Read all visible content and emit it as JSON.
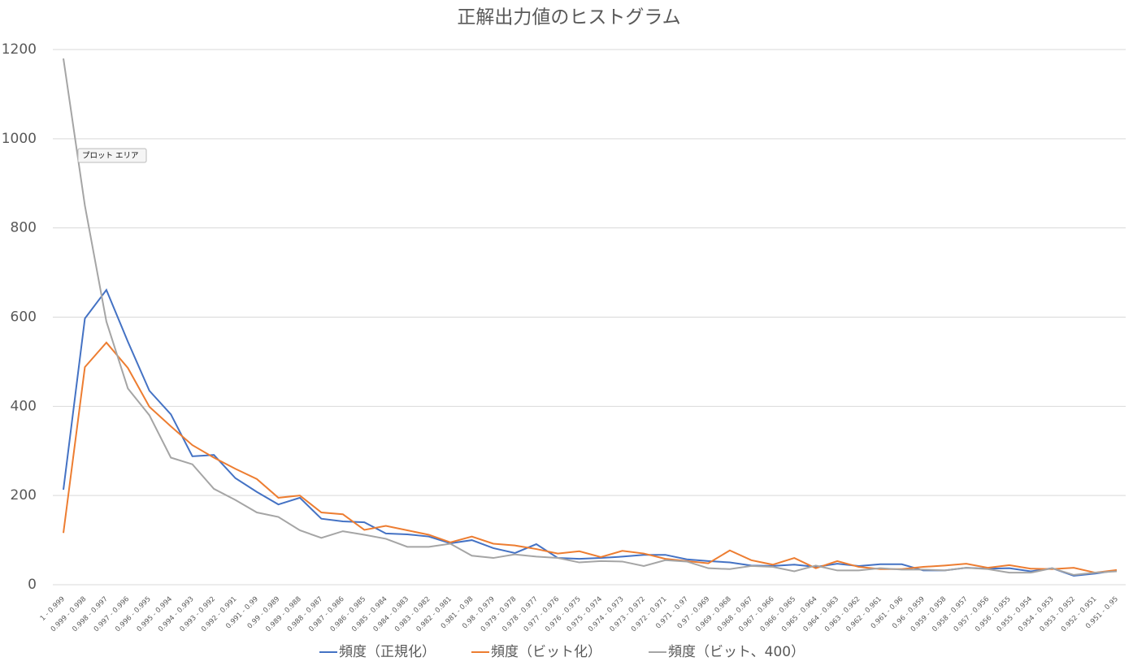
{
  "chart_data": {
    "type": "line",
    "title": "正解出力値のヒストグラム",
    "categories": [
      "1 - 0.999",
      "0.999 - 0.998",
      "0.998 - 0.997",
      "0.997 - 0.996",
      "0.996 - 0.995",
      "0.995 - 0.994",
      "0.994 - 0.993",
      "0.993 - 0.992",
      "0.992 - 0.991",
      "0.991 - 0.99",
      "0.99 - 0.989",
      "0.989 - 0.988",
      "0.988 - 0.987",
      "0.987 - 0.986",
      "0.986 - 0.985",
      "0.985 - 0.984",
      "0.984 - 0.983",
      "0.983 - 0.982",
      "0.982 - 0.981",
      "0.981 - 0.98",
      "0.98 - 0.979",
      "0.979 - 0.978",
      "0.978 - 0.977",
      "0.977 - 0.976",
      "0.976 - 0.975",
      "0.975 - 0.974",
      "0.974 - 0.973",
      "0.973 - 0.972",
      "0.972 - 0.971",
      "0.971 - 0.97",
      "0.97 - 0.969",
      "0.969 - 0.968",
      "0.968 - 0.967",
      "0.967 - 0.966",
      "0.966 - 0.965",
      "0.965 - 0.964",
      "0.964 - 0.963",
      "0.963 - 0.962",
      "0.962 - 0.961",
      "0.961 - 0.96",
      "0.96 - 0.959",
      "0.959 - 0.958",
      "0.958 - 0.957",
      "0.957 - 0.956",
      "0.956 - 0.955",
      "0.955 - 0.954",
      "0.954 - 0.953",
      "0.953 - 0.952",
      "0.952 - 0.951",
      "0.951 - 0.95"
    ],
    "series": [
      {
        "name": "頻度（正規化）",
        "color": "#4472c4",
        "values": [
          213,
          597,
          661,
          545,
          435,
          382,
          288,
          291,
          239,
          208,
          180,
          195,
          148,
          142,
          140,
          115,
          113,
          108,
          93,
          100,
          82,
          71,
          91,
          60,
          58,
          60,
          63,
          67,
          67,
          57,
          53,
          50,
          43,
          42,
          45,
          40,
          47,
          42,
          46,
          46,
          32,
          32,
          38,
          36,
          37,
          30,
          37,
          20,
          25,
          32
        ]
      },
      {
        "name": "頻度（ビット化）",
        "color": "#ed7d31",
        "values": [
          116,
          488,
          543,
          486,
          399,
          355,
          313,
          285,
          260,
          237,
          195,
          200,
          162,
          158,
          123,
          132,
          122,
          112,
          95,
          108,
          92,
          88,
          80,
          70,
          75,
          62,
          76,
          70,
          58,
          53,
          48,
          77,
          55,
          45,
          60,
          37,
          53,
          40,
          35,
          35,
          40,
          43,
          47,
          38,
          44,
          36,
          35,
          38,
          27,
          33
        ]
      },
      {
        "name": "頻度（ビット、400）",
        "color": "#a5a5a5",
        "values": [
          1180,
          850,
          590,
          440,
          380,
          285,
          270,
          215,
          190,
          162,
          152,
          122,
          105,
          120,
          112,
          103,
          85,
          85,
          92,
          65,
          60,
          68,
          63,
          60,
          50,
          53,
          52,
          42,
          55,
          52,
          37,
          35,
          42,
          40,
          30,
          43,
          32,
          32,
          37,
          34,
          34,
          32,
          38,
          35,
          27,
          27,
          37,
          22,
          27,
          30
        ]
      }
    ],
    "ylim": [
      0,
      1200
    ],
    "yticks": [
      0,
      200,
      400,
      600,
      800,
      1000,
      1200
    ],
    "grid": true,
    "legend": "bottom"
  },
  "tooltip": "プロット エリア"
}
